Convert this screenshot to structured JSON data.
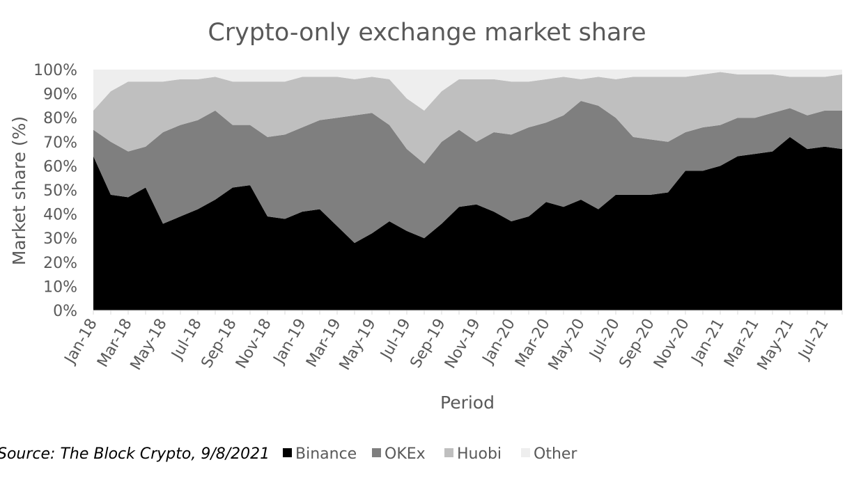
{
  "chart_data": {
    "type": "area",
    "stacked": true,
    "percent": true,
    "title": "Crypto-only exchange market share",
    "xlabel": "Period",
    "ylabel": "Market share (%)",
    "ylim": [
      0,
      100
    ],
    "yticks": [
      "0%",
      "10%",
      "20%",
      "30%",
      "40%",
      "50%",
      "60%",
      "70%",
      "80%",
      "90%",
      "100%"
    ],
    "grid": false,
    "legend_position": "bottom",
    "source": "Source: The Block Crypto, 9/8/2021",
    "x": [
      "Jan-18",
      "Feb-18",
      "Mar-18",
      "Apr-18",
      "May-18",
      "Jun-18",
      "Jul-18",
      "Aug-18",
      "Sep-18",
      "Oct-18",
      "Nov-18",
      "Dec-18",
      "Jan-19",
      "Feb-19",
      "Mar-19",
      "Apr-19",
      "May-19",
      "Jun-19",
      "Jul-19",
      "Aug-19",
      "Sep-19",
      "Oct-19",
      "Nov-19",
      "Dec-19",
      "Jan-20",
      "Feb-20",
      "Mar-20",
      "Apr-20",
      "May-20",
      "Jun-20",
      "Jul-20",
      "Aug-20",
      "Sep-20",
      "Oct-20",
      "Nov-20",
      "Dec-20",
      "Jan-21",
      "Feb-21",
      "Mar-21",
      "Apr-21",
      "May-21",
      "Jun-21",
      "Jul-21",
      "Aug-21"
    ],
    "x_tick_labels": [
      "Jan-18",
      "Mar-18",
      "May-18",
      "Jul-18",
      "Sep-18",
      "Nov-18",
      "Jan-19",
      "Mar-19",
      "May-19",
      "Jul-19",
      "Sep-19",
      "Nov-19",
      "Jan-20",
      "Mar-20",
      "May-20",
      "Jul-20",
      "Sep-20",
      "Nov-20",
      "Jan-21",
      "Mar-21",
      "May-21",
      "Jul-21"
    ],
    "series": [
      {
        "name": "Binance",
        "color": "#000000",
        "values": [
          64,
          48,
          47,
          51,
          36,
          39,
          42,
          46,
          51,
          52,
          39,
          38,
          41,
          42,
          35,
          28,
          32,
          37,
          33,
          30,
          36,
          43,
          44,
          41,
          37,
          39,
          45,
          43,
          46,
          42,
          48,
          48,
          48,
          49,
          58,
          58,
          60,
          64,
          65,
          66,
          72,
          67,
          68,
          67
        ]
      },
      {
        "name": "OKEx",
        "color": "#7f7f7f",
        "values": [
          11,
          22,
          19,
          17,
          38,
          38,
          37,
          37,
          26,
          25,
          33,
          35,
          35,
          37,
          45,
          53,
          50,
          40,
          34,
          31,
          34,
          32,
          26,
          33,
          36,
          37,
          33,
          38,
          41,
          43,
          32,
          24,
          23,
          21,
          16,
          18,
          17,
          16,
          15,
          16,
          12,
          14,
          15,
          16
        ]
      },
      {
        "name": "Huobi",
        "color": "#bfbfbf",
        "values": [
          8,
          21,
          29,
          27,
          21,
          19,
          17,
          14,
          18,
          18,
          23,
          22,
          21,
          18,
          17,
          15,
          15,
          19,
          21,
          22,
          21,
          21,
          26,
          22,
          22,
          19,
          18,
          16,
          9,
          12,
          16,
          25,
          26,
          27,
          23,
          22,
          22,
          18,
          18,
          16,
          13,
          16,
          14,
          15
        ]
      },
      {
        "name": "Other",
        "color": "#eeeeee",
        "values": [
          17,
          9,
          5,
          5,
          5,
          4,
          4,
          3,
          5,
          5,
          5,
          5,
          3,
          3,
          3,
          4,
          3,
          4,
          12,
          17,
          9,
          4,
          4,
          4,
          5,
          5,
          4,
          3,
          4,
          3,
          4,
          3,
          3,
          3,
          3,
          2,
          1,
          2,
          2,
          2,
          3,
          3,
          3,
          2
        ]
      }
    ]
  }
}
